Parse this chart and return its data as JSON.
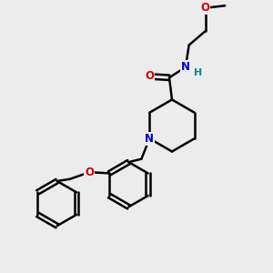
{
  "bg_color": "#ececec",
  "bond_color": "#000000",
  "bond_width": 1.8,
  "N_color": "#0000cc",
  "O_color": "#cc0000",
  "H_color": "#008888",
  "fontsize": 8.5,
  "figsize": [
    3.0,
    3.0
  ],
  "dpi": 100,
  "xlim": [
    0,
    10
  ],
  "ylim": [
    0,
    10
  ]
}
